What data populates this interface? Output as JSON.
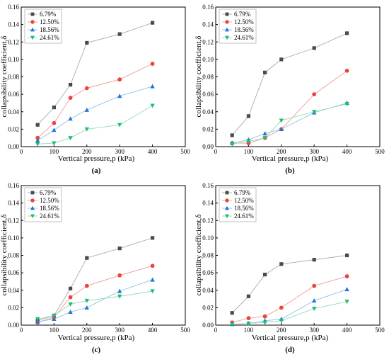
{
  "chart_data": [
    {
      "type": "line",
      "caption": "(a)",
      "xlabel": "Vertical pressure,p (kPa)",
      "ylabel": "collapsibility coefficient,δ",
      "xlim": [
        0,
        500
      ],
      "ylim": [
        0,
        0.16
      ],
      "xticks": [
        0,
        100,
        200,
        300,
        400,
        500
      ],
      "yticks": [
        0.0,
        0.02,
        0.04,
        0.06,
        0.08,
        0.1,
        0.12,
        0.14,
        0.16
      ],
      "legend_position": "top-left",
      "x": [
        50,
        100,
        150,
        200,
        300,
        400
      ],
      "series": [
        {
          "name": "6.79%",
          "values": [
            0.025,
            0.045,
            0.071,
            0.119,
            0.129,
            0.142
          ]
        },
        {
          "name": "12.50%",
          "values": [
            0.01,
            0.027,
            0.056,
            0.067,
            0.077,
            0.095
          ]
        },
        {
          "name": "18.56%",
          "values": [
            0.007,
            0.019,
            0.032,
            0.042,
            0.058,
            0.069
          ]
        },
        {
          "name": "24.61%",
          "values": [
            0.003,
            0.004,
            0.01,
            0.02,
            0.025,
            0.047
          ]
        }
      ]
    },
    {
      "type": "line",
      "caption": "(b)",
      "xlabel": "Vertical pressure,p (kPa)",
      "ylabel": "collapsibility coefficient,δ",
      "xlim": [
        0,
        500
      ],
      "ylim": [
        0,
        0.16
      ],
      "xticks": [
        0,
        100,
        200,
        300,
        400,
        500
      ],
      "yticks": [
        0.0,
        0.02,
        0.04,
        0.06,
        0.08,
        0.1,
        0.12,
        0.14,
        0.16
      ],
      "legend_position": "top-left",
      "x": [
        50,
        100,
        150,
        200,
        300,
        400
      ],
      "series": [
        {
          "name": "6.79%",
          "values": [
            0.013,
            0.035,
            0.085,
            0.1,
            0.113,
            0.13
          ]
        },
        {
          "name": "12.50%",
          "values": [
            0.004,
            0.004,
            0.01,
            0.02,
            0.06,
            0.087
          ]
        },
        {
          "name": "18.56%",
          "values": [
            0.004,
            0.008,
            0.015,
            0.02,
            0.039,
            0.05
          ]
        },
        {
          "name": "24.61%",
          "values": [
            0.003,
            0.006,
            0.01,
            0.03,
            0.04,
            0.049
          ]
        }
      ]
    },
    {
      "type": "line",
      "caption": "(c)",
      "xlabel": "Vertical pressure,p (kPa)",
      "ylabel": "collapsibility coefficient,δ",
      "xlim": [
        0,
        500
      ],
      "ylim": [
        0,
        0.16
      ],
      "xticks": [
        0,
        100,
        200,
        300,
        400,
        500
      ],
      "yticks": [
        0.0,
        0.02,
        0.04,
        0.06,
        0.08,
        0.1,
        0.12,
        0.14,
        0.16
      ],
      "legend_position": "top-left",
      "x": [
        50,
        100,
        150,
        200,
        300,
        400
      ],
      "series": [
        {
          "name": "6.79%",
          "values": [
            0.005,
            0.011,
            0.042,
            0.077,
            0.088,
            0.1
          ]
        },
        {
          "name": "12.50%",
          "values": [
            0.003,
            0.009,
            0.032,
            0.045,
            0.057,
            0.068
          ]
        },
        {
          "name": "18.56%",
          "values": [
            0.004,
            0.007,
            0.015,
            0.02,
            0.039,
            0.052
          ]
        },
        {
          "name": "24.61%",
          "values": [
            0.007,
            0.011,
            0.024,
            0.028,
            0.033,
            0.039
          ]
        }
      ]
    },
    {
      "type": "line",
      "caption": "(d)",
      "xlabel": "Vertical pressure,p (kPa)",
      "ylabel": "collapsibility coefficient,δ",
      "xlim": [
        0,
        500
      ],
      "ylim": [
        0,
        0.16
      ],
      "xticks": [
        0,
        100,
        200,
        300,
        400,
        500
      ],
      "yticks": [
        0.0,
        0.02,
        0.04,
        0.06,
        0.08,
        0.1,
        0.12,
        0.14,
        0.16
      ],
      "legend_position": "top-left",
      "x": [
        50,
        100,
        150,
        200,
        300,
        400
      ],
      "series": [
        {
          "name": "6.79%",
          "values": [
            0.014,
            0.033,
            0.058,
            0.07,
            0.075,
            0.08
          ]
        },
        {
          "name": "12.50%",
          "values": [
            0.003,
            0.008,
            0.01,
            0.02,
            0.045,
            0.056
          ]
        },
        {
          "name": "18.56%",
          "values": [
            0.001,
            0.002,
            0.005,
            0.007,
            0.028,
            0.041
          ]
        },
        {
          "name": "24.61%",
          "values": [
            0.001,
            0.002,
            0.003,
            0.005,
            0.019,
            0.027
          ]
        }
      ]
    }
  ],
  "series_styles": [
    {
      "color": "#4a4a4a",
      "line": "#aaaaaa",
      "marker": "square"
    },
    {
      "color": "#e8453c",
      "line": "#f09a95",
      "marker": "circle"
    },
    {
      "color": "#1f77d0",
      "line": "#8cc0ec",
      "marker": "triangle-up"
    },
    {
      "color": "#1fbf6f",
      "line": "#8fdcb2",
      "marker": "triangle-down"
    }
  ]
}
